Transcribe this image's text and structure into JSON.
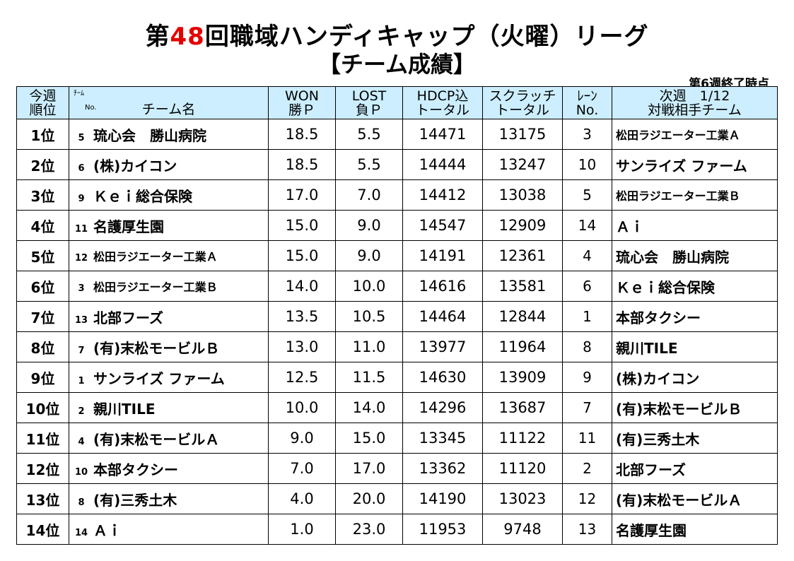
{
  "header": {
    "title_pre": "第",
    "title_num": "48",
    "title_post": "回職域ハンディキャップ（火曜）リーグ",
    "subtitle": "【チーム成績】",
    "as_of": "第6週終了時点"
  },
  "columns": {
    "rank_1": "今週",
    "rank_2": "順位",
    "team_small_1": "ﾁｰﾑ",
    "team_small_2": "No.",
    "team_name": "チーム名",
    "won_1": "WON",
    "won_2": "勝Ｐ",
    "lost_1": "LOST",
    "lost_2": "負Ｐ",
    "hdcp_1": "HDCP込",
    "hdcp_2": "トータル",
    "scratch_1": "スクラッチ",
    "scratch_2": "トータル",
    "lane_1": "ﾚｰﾝ",
    "lane_2": "No.",
    "opp_1": "次週　1/12",
    "opp_2": "対戦相手チーム"
  },
  "rows": [
    {
      "rank": "1位",
      "no": "5",
      "team": "琉心会　勝山病院",
      "won": "18.5",
      "lost": "5.5",
      "hdcp": "14471",
      "scratch": "13175",
      "lane": "3",
      "opponent": "松田ラジエーター工業Ａ"
    },
    {
      "rank": "2位",
      "no": "6",
      "team": "(株)カイコン",
      "won": "18.5",
      "lost": "5.5",
      "hdcp": "14444",
      "scratch": "13247",
      "lane": "10",
      "opponent": "サンライズ ファーム"
    },
    {
      "rank": "3位",
      "no": "9",
      "team": "Ｋｅｉ総合保険",
      "won": "17.0",
      "lost": "7.0",
      "hdcp": "14412",
      "scratch": "13038",
      "lane": "5",
      "opponent": "松田ラジエーター工業Ｂ"
    },
    {
      "rank": "4位",
      "no": "11",
      "team": "名護厚生園",
      "won": "15.0",
      "lost": "9.0",
      "hdcp": "14547",
      "scratch": "12909",
      "lane": "14",
      "opponent": "Ａｉ"
    },
    {
      "rank": "5位",
      "no": "12",
      "team": "松田ラジエーター工業Ａ",
      "won": "15.0",
      "lost": "9.0",
      "hdcp": "14191",
      "scratch": "12361",
      "lane": "4",
      "opponent": "琉心会　勝山病院"
    },
    {
      "rank": "6位",
      "no": "3",
      "team": "松田ラジエーター工業Ｂ",
      "won": "14.0",
      "lost": "10.0",
      "hdcp": "14616",
      "scratch": "13581",
      "lane": "6",
      "opponent": "Ｋｅｉ総合保険"
    },
    {
      "rank": "7位",
      "no": "13",
      "team": "北部フーズ",
      "won": "13.5",
      "lost": "10.5",
      "hdcp": "14464",
      "scratch": "12844",
      "lane": "1",
      "opponent": "本部タクシー"
    },
    {
      "rank": "8位",
      "no": "7",
      "team": "(有)末松モービルＢ",
      "won": "13.0",
      "lost": "11.0",
      "hdcp": "13977",
      "scratch": "11964",
      "lane": "8",
      "opponent": "親川TILE"
    },
    {
      "rank": "9位",
      "no": "1",
      "team": "サンライズ ファーム",
      "won": "12.5",
      "lost": "11.5",
      "hdcp": "14630",
      "scratch": "13909",
      "lane": "9",
      "opponent": "(株)カイコン"
    },
    {
      "rank": "10位",
      "no": "2",
      "team": "親川TILE",
      "won": "10.0",
      "lost": "14.0",
      "hdcp": "14296",
      "scratch": "13687",
      "lane": "7",
      "opponent": "(有)末松モービルＢ"
    },
    {
      "rank": "11位",
      "no": "4",
      "team": "(有)末松モービルＡ",
      "won": "9.0",
      "lost": "15.0",
      "hdcp": "13345",
      "scratch": "11122",
      "lane": "11",
      "opponent": "(有)三秀土木"
    },
    {
      "rank": "12位",
      "no": "10",
      "team": "本部タクシー",
      "won": "7.0",
      "lost": "17.0",
      "hdcp": "13362",
      "scratch": "11120",
      "lane": "2",
      "opponent": "北部フーズ"
    },
    {
      "rank": "13位",
      "no": "8",
      "team": "(有)三秀土木",
      "won": "4.0",
      "lost": "20.0",
      "hdcp": "14190",
      "scratch": "13023",
      "lane": "12",
      "opponent": "(有)末松モービルＡ"
    },
    {
      "rank": "14位",
      "no": "14",
      "team": "Ａｉ",
      "won": "1.0",
      "lost": "23.0",
      "hdcp": "11953",
      "scratch": "9748",
      "lane": "13",
      "opponent": "名護厚生園"
    }
  ]
}
